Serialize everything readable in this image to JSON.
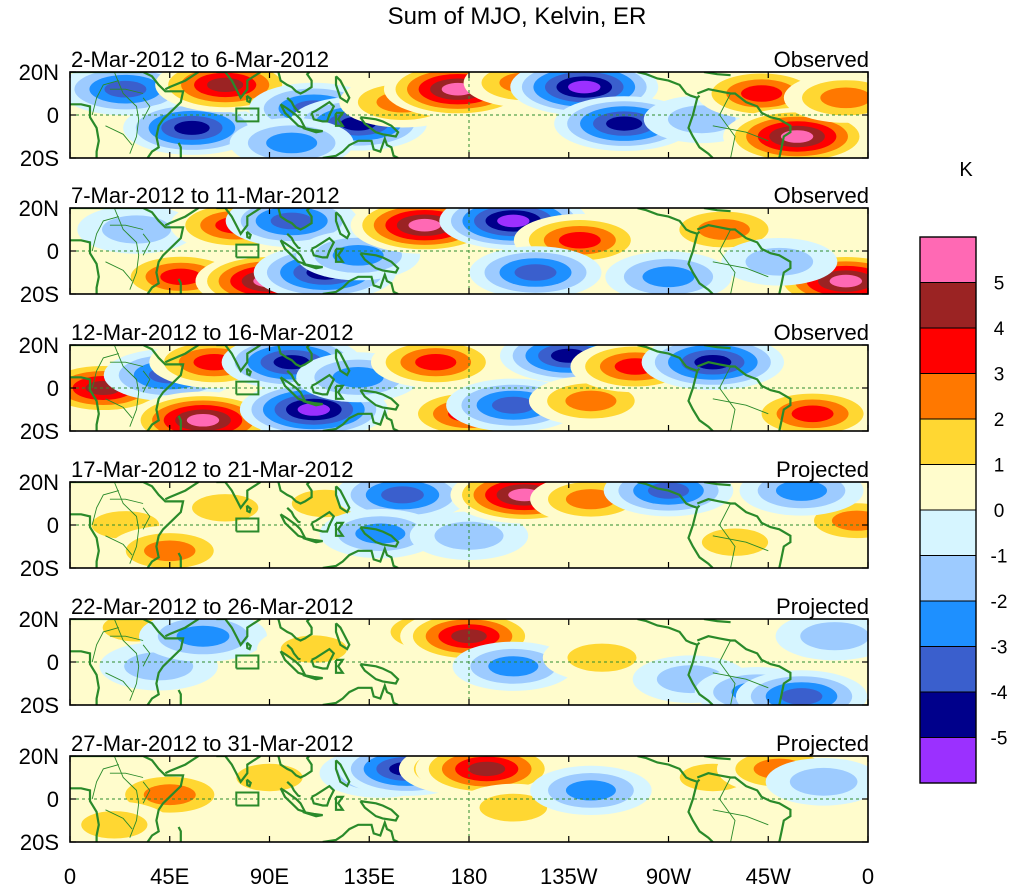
{
  "chart_data": {
    "type": "heatmap",
    "title": "Sum of MJO, Kelvin, ER",
    "unit": "K",
    "x_tick_labels": [
      "0",
      "45E",
      "90E",
      "135E",
      "180",
      "135W",
      "90W",
      "45W",
      "0"
    ],
    "y_tick_labels": [
      "20N",
      "0",
      "20S"
    ],
    "xlim_deg_east": [
      0,
      360
    ],
    "ylim_deg": [
      -20,
      20
    ],
    "colorbar": {
      "colors": [
        "#9b30ff",
        "#00008b",
        "#3a5fcd",
        "#1e90ff",
        "#9dcbff",
        "#d6f5ff",
        "#fffccc",
        "#ffd732",
        "#ff7800",
        "#ff0000",
        "#9b2323",
        "#ff69b4"
      ],
      "labels": [
        "5",
        "4",
        "3",
        "2",
        "1",
        "0",
        "-1",
        "-2",
        "-3",
        "-4",
        "-5"
      ]
    },
    "panels": [
      {
        "period": "2-Mar-2012 to 6-Mar-2012",
        "status": "Observed",
        "anomalies": [
          {
            "lon": 25,
            "lat": 12,
            "value": -3.5
          },
          {
            "lon": 55,
            "lat": -6,
            "value": -4.2
          },
          {
            "lon": 70,
            "lat": 14,
            "value": 4.5
          },
          {
            "lon": 110,
            "lat": 3,
            "value": -3.2
          },
          {
            "lon": 130,
            "lat": -4,
            "value": -4.2
          },
          {
            "lon": 150,
            "lat": 6,
            "value": 2.8
          },
          {
            "lon": 175,
            "lat": 12,
            "value": 5.5
          },
          {
            "lon": 205,
            "lat": 15,
            "value": 2.2
          },
          {
            "lon": 232,
            "lat": 13,
            "value": -5.5
          },
          {
            "lon": 250,
            "lat": -4,
            "value": -4.5
          },
          {
            "lon": 285,
            "lat": -2,
            "value": -1.5
          },
          {
            "lon": 312,
            "lat": 10,
            "value": 3.2
          },
          {
            "lon": 328,
            "lat": -10,
            "value": 5.5
          },
          {
            "lon": 350,
            "lat": 8,
            "value": 2.5
          },
          {
            "lon": 100,
            "lat": -13,
            "value": -2.5
          }
        ]
      },
      {
        "period": "7-Mar-2012 to 11-Mar-2012",
        "status": "Observed",
        "anomalies": [
          {
            "lon": 30,
            "lat": 10,
            "value": -1.8
          },
          {
            "lon": 50,
            "lat": -12,
            "value": 3.2
          },
          {
            "lon": 75,
            "lat": 12,
            "value": 3.5
          },
          {
            "lon": 90,
            "lat": -14,
            "value": 5.5
          },
          {
            "lon": 115,
            "lat": -10,
            "value": -4.8
          },
          {
            "lon": 100,
            "lat": 14,
            "value": -3.5
          },
          {
            "lon": 130,
            "lat": -2,
            "value": -2.5
          },
          {
            "lon": 160,
            "lat": 12,
            "value": 5.5
          },
          {
            "lon": 200,
            "lat": 14,
            "value": -5.5
          },
          {
            "lon": 230,
            "lat": 5,
            "value": 3.5
          },
          {
            "lon": 210,
            "lat": -10,
            "value": -3.5
          },
          {
            "lon": 270,
            "lat": -12,
            "value": -2.8
          },
          {
            "lon": 295,
            "lat": 10,
            "value": 2.8
          },
          {
            "lon": 350,
            "lat": -14,
            "value": 5.5
          },
          {
            "lon": 320,
            "lat": -5,
            "value": -1.5
          }
        ]
      },
      {
        "period": "12-Mar-2012 to 16-Mar-2012",
        "status": "Observed",
        "anomalies": [
          {
            "lon": 15,
            "lat": 0,
            "value": 4.2
          },
          {
            "lon": 45,
            "lat": 6,
            "value": -3.5
          },
          {
            "lon": 65,
            "lat": 12,
            "value": 3.2
          },
          {
            "lon": 60,
            "lat": -15,
            "value": 5.5
          },
          {
            "lon": 100,
            "lat": 12,
            "value": -4.5
          },
          {
            "lon": 110,
            "lat": -10,
            "value": -5.5
          },
          {
            "lon": 130,
            "lat": 5,
            "value": -2.5
          },
          {
            "lon": 165,
            "lat": 12,
            "value": 3.2
          },
          {
            "lon": 180,
            "lat": -12,
            "value": 3.5
          },
          {
            "lon": 200,
            "lat": -8,
            "value": -3.8
          },
          {
            "lon": 225,
            "lat": 15,
            "value": -4.2
          },
          {
            "lon": 235,
            "lat": -6,
            "value": 2.5
          },
          {
            "lon": 255,
            "lat": 10,
            "value": 3.2
          },
          {
            "lon": 290,
            "lat": 12,
            "value": -4.8
          },
          {
            "lon": 335,
            "lat": -12,
            "value": 3.5
          }
        ]
      },
      {
        "period": "17-Mar-2012 to 21-Mar-2012",
        "status": "Projected",
        "anomalies": [
          {
            "lon": 25,
            "lat": 0,
            "value": 1.5
          },
          {
            "lon": 45,
            "lat": -12,
            "value": 2.6
          },
          {
            "lon": 70,
            "lat": 8,
            "value": 1.2
          },
          {
            "lon": 115,
            "lat": 10,
            "value": 1.2
          },
          {
            "lon": 150,
            "lat": 14,
            "value": -3.8
          },
          {
            "lon": 140,
            "lat": -4,
            "value": -2.2
          },
          {
            "lon": 180,
            "lat": -5,
            "value": -1.8
          },
          {
            "lon": 205,
            "lat": 14,
            "value": 5.5
          },
          {
            "lon": 235,
            "lat": 12,
            "value": 2.2
          },
          {
            "lon": 270,
            "lat": 16,
            "value": -3.2
          },
          {
            "lon": 300,
            "lat": -8,
            "value": 1.2
          },
          {
            "lon": 355,
            "lat": 2,
            "value": 2.2
          },
          {
            "lon": 330,
            "lat": 16,
            "value": -2.5
          }
        ]
      },
      {
        "period": "22-Mar-2012 to 26-Mar-2012",
        "status": "Projected",
        "anomalies": [
          {
            "lon": 30,
            "lat": 16,
            "value": 1.5
          },
          {
            "lon": 40,
            "lat": -2,
            "value": -1.8
          },
          {
            "lon": 60,
            "lat": 12,
            "value": -3.0
          },
          {
            "lon": 110,
            "lat": 6,
            "value": 1.2
          },
          {
            "lon": 165,
            "lat": 14,
            "value": 3.0
          },
          {
            "lon": 180,
            "lat": 12,
            "value": 4.2
          },
          {
            "lon": 200,
            "lat": -2,
            "value": -2.2
          },
          {
            "lon": 240,
            "lat": 2,
            "value": 1.8
          },
          {
            "lon": 280,
            "lat": -8,
            "value": -1.5
          },
          {
            "lon": 310,
            "lat": -14,
            "value": -2.6
          },
          {
            "lon": 330,
            "lat": -16,
            "value": -3.4
          },
          {
            "lon": 345,
            "lat": 12,
            "value": -1.8
          }
        ]
      },
      {
        "period": "27-Mar-2012 to 31-Mar-2012",
        "status": "Projected",
        "anomalies": [
          {
            "lon": 45,
            "lat": 2,
            "value": 2.8
          },
          {
            "lon": 20,
            "lat": -12,
            "value": 1.2
          },
          {
            "lon": 90,
            "lat": 10,
            "value": 1.2
          },
          {
            "lon": 140,
            "lat": 12,
            "value": -2.2
          },
          {
            "lon": 152,
            "lat": 14,
            "value": -4.2
          },
          {
            "lon": 178,
            "lat": 14,
            "value": 3.4
          },
          {
            "lon": 188,
            "lat": 14,
            "value": 4.8
          },
          {
            "lon": 200,
            "lat": -4,
            "value": 1.5
          },
          {
            "lon": 235,
            "lat": 4,
            "value": -2.2
          },
          {
            "lon": 290,
            "lat": 10,
            "value": 1.2
          },
          {
            "lon": 320,
            "lat": 14,
            "value": 2.6
          },
          {
            "lon": 340,
            "lat": 8,
            "value": -1.5
          }
        ]
      }
    ]
  }
}
